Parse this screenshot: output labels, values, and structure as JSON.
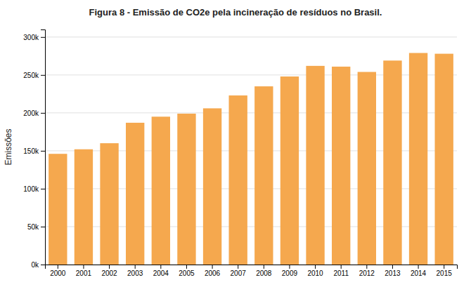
{
  "chart_data": {
    "type": "bar",
    "title": "Figura 8 - Emissão de CO2e pela incineração de resíduos no Brasil.",
    "categories": [
      2000,
      2001,
      2002,
      2003,
      2004,
      2005,
      2006,
      2007,
      2008,
      2009,
      2010,
      2011,
      2012,
      2013,
      2014,
      2015
    ],
    "values": [
      146000,
      152000,
      160000,
      187000,
      195000,
      199000,
      206000,
      223000,
      235000,
      248000,
      262000,
      261000,
      254000,
      269000,
      279000,
      278000
    ],
    "color": "#F5A84E",
    "ylabel": "Emissões",
    "ylim": [
      0,
      310000
    ],
    "yticks": [
      {
        "value": 0,
        "label": "0k"
      },
      {
        "value": 50000,
        "label": "50k"
      },
      {
        "value": 100000,
        "label": "100k"
      },
      {
        "value": 150000,
        "label": "150k"
      },
      {
        "value": 200000,
        "label": "200k"
      },
      {
        "value": 250000,
        "label": "250k"
      },
      {
        "value": 300000,
        "label": "300k"
      }
    ],
    "grid": true
  }
}
